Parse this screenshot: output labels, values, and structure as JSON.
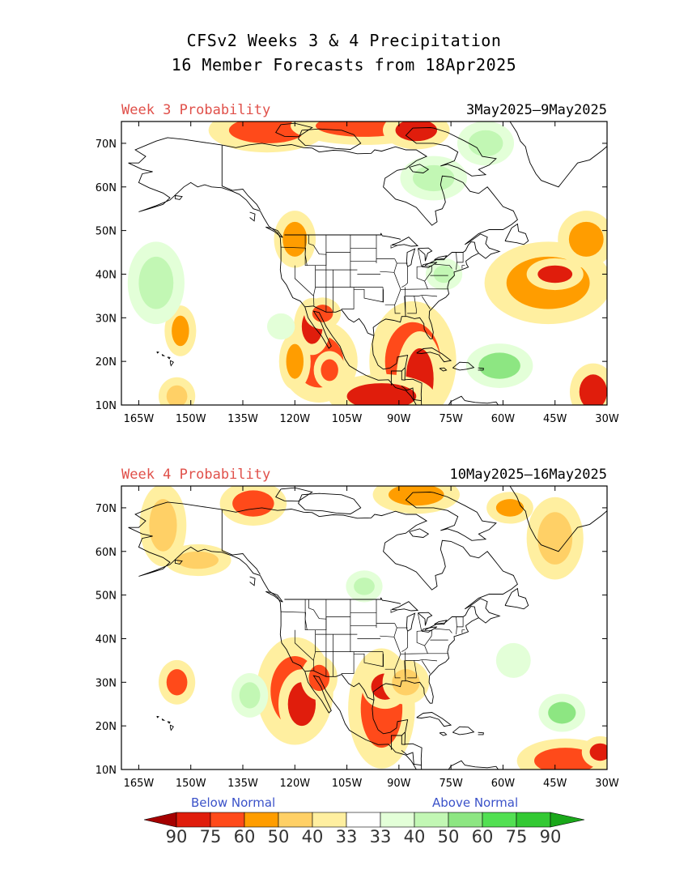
{
  "header": {
    "title_line1": "CFSv2 Weeks 3 & 4 Precipitation",
    "title_line2": "16 Member Forecasts from 18Apr2025"
  },
  "panels": [
    {
      "label": "Week 3 Probability",
      "dates": "3May2025—9May2025",
      "blobs": [
        {
          "lon": -128,
          "lat": 73,
          "rx": 11,
          "ry": 3,
          "cat": "b60"
        },
        {
          "lon": -100,
          "lat": 74,
          "rx": 14,
          "ry": 2.5,
          "cat": "b60"
        },
        {
          "lon": -85,
          "lat": 73,
          "rx": 6,
          "ry": 2.5,
          "cat": "b75"
        },
        {
          "lon": -113,
          "lat": 20,
          "rx": 7,
          "ry": 6,
          "cat": "b60"
        },
        {
          "lon": -115,
          "lat": 28,
          "rx": 3,
          "ry": 4,
          "cat": "b75"
        },
        {
          "lon": -112,
          "lat": 31,
          "rx": 3,
          "ry": 2,
          "cat": "b60"
        },
        {
          "lon": -120,
          "lat": 48,
          "rx": 3.5,
          "ry": 4,
          "cat": "b50"
        },
        {
          "lon": -153,
          "lat": 27,
          "rx": 2.5,
          "ry": 3.5,
          "cat": "b50"
        },
        {
          "lon": -154,
          "lat": 12,
          "rx": 3,
          "ry": 2.5,
          "cat": "b40"
        },
        {
          "lon": -120,
          "lat": 20,
          "rx": 2.5,
          "ry": 4,
          "cat": "b50"
        },
        {
          "lon": -110,
          "lat": 18,
          "rx": 2.5,
          "ry": 2.5,
          "cat": "b60"
        },
        {
          "lon": -86,
          "lat": 20,
          "rx": 8,
          "ry": 9,
          "cat": "b60"
        },
        {
          "lon": -84,
          "lat": 16,
          "rx": 4,
          "ry": 7,
          "cat": "b75"
        },
        {
          "lon": -95,
          "lat": 12,
          "rx": 10,
          "ry": 3,
          "cat": "b75"
        },
        {
          "lon": -47,
          "lat": 38,
          "rx": 12,
          "ry": 6,
          "cat": "b50"
        },
        {
          "lon": -45,
          "lat": 40,
          "rx": 5,
          "ry": 2,
          "cat": "b75"
        },
        {
          "lon": -36,
          "lat": 48,
          "rx": 5,
          "ry": 4,
          "cat": "b50"
        },
        {
          "lon": -34,
          "lat": 13,
          "rx": 4,
          "ry": 4,
          "cat": "b75"
        },
        {
          "lon": -61,
          "lat": 19,
          "rx": 6,
          "ry": 3,
          "cat": "a50"
        },
        {
          "lon": -160,
          "lat": 38,
          "rx": 5,
          "ry": 6,
          "cat": "a40"
        },
        {
          "lon": -80,
          "lat": 62,
          "rx": 6,
          "ry": 3,
          "cat": "a40"
        },
        {
          "lon": -65,
          "lat": 70,
          "rx": 5,
          "ry": 3,
          "cat": "a40"
        },
        {
          "lon": -77,
          "lat": 40,
          "rx": 3,
          "ry": 2,
          "cat": "a40"
        },
        {
          "lon": -124,
          "lat": 28,
          "rx": 4,
          "ry": 3,
          "cat": "a33"
        }
      ]
    },
    {
      "label": "Week 4 Probability",
      "dates": "10May2025—16May2025",
      "blobs": [
        {
          "lon": -132,
          "lat": 71,
          "rx": 6,
          "ry": 3,
          "cat": "b60"
        },
        {
          "lon": -85,
          "lat": 73,
          "rx": 8,
          "ry": 2.5,
          "cat": "b50"
        },
        {
          "lon": -58,
          "lat": 70,
          "rx": 4,
          "ry": 2,
          "cat": "b50"
        },
        {
          "lon": -158,
          "lat": 66,
          "rx": 4,
          "ry": 6,
          "cat": "b40"
        },
        {
          "lon": -148,
          "lat": 58,
          "rx": 6,
          "ry": 2,
          "cat": "b40"
        },
        {
          "lon": -120,
          "lat": 28,
          "rx": 7,
          "ry": 8,
          "cat": "b60"
        },
        {
          "lon": -118,
          "lat": 25,
          "rx": 4,
          "ry": 5,
          "cat": "b75"
        },
        {
          "lon": -113,
          "lat": 31,
          "rx": 3,
          "ry": 3,
          "cat": "b60"
        },
        {
          "lon": -95,
          "lat": 24,
          "rx": 6,
          "ry": 9,
          "cat": "b60"
        },
        {
          "lon": -94,
          "lat": 29,
          "rx": 4,
          "ry": 3,
          "cat": "b75"
        },
        {
          "lon": -88,
          "lat": 30,
          "rx": 4,
          "ry": 3,
          "cat": "b40"
        },
        {
          "lon": -154,
          "lat": 30,
          "rx": 3,
          "ry": 3,
          "cat": "b60"
        },
        {
          "lon": -42,
          "lat": 12,
          "rx": 9,
          "ry": 3,
          "cat": "b60"
        },
        {
          "lon": -32,
          "lat": 14,
          "rx": 3,
          "ry": 2,
          "cat": "b75"
        },
        {
          "lon": -45,
          "lat": 63,
          "rx": 5,
          "ry": 6,
          "cat": "b40"
        },
        {
          "lon": -43,
          "lat": 23,
          "rx": 4,
          "ry": 2.5,
          "cat": "a50"
        },
        {
          "lon": -57,
          "lat": 35,
          "rx": 5,
          "ry": 4,
          "cat": "a33"
        },
        {
          "lon": -100,
          "lat": 52,
          "rx": 3,
          "ry": 2,
          "cat": "a40"
        },
        {
          "lon": -133,
          "lat": 27,
          "rx": 3,
          "ry": 3,
          "cat": "a40"
        }
      ]
    }
  ],
  "map": {
    "lon_ticks": [
      "165W",
      "150W",
      "135W",
      "120W",
      "105W",
      "90W",
      "75W",
      "60W",
      "45W",
      "30W"
    ],
    "lat_ticks": [
      "10N",
      "20N",
      "30N",
      "40N",
      "50N",
      "60N",
      "70N"
    ]
  },
  "legend": {
    "below_label": "Below Normal",
    "above_label": "Above Normal",
    "numbers": [
      "90",
      "75",
      "60",
      "50",
      "40",
      "33",
      "33",
      "40",
      "50",
      "60",
      "75",
      "90"
    ],
    "colors": [
      "#a50000",
      "#e01d0c",
      "#ff4a1a",
      "#ff9d00",
      "#ffd066",
      "#ffefa0",
      "#ffffff",
      "#e3ffd8",
      "#c2f7b4",
      "#8de682",
      "#52e052",
      "#33c933",
      "#1aa81a"
    ]
  },
  "category_colors": {
    "b33": "#ffefa0",
    "b40": "#ffd066",
    "b50": "#ff9d00",
    "b60": "#ff4a1a",
    "b75": "#e01d0c",
    "a33": "#e3ffd8",
    "a40": "#c2f7b4",
    "a50": "#8de682",
    "a60": "#52e052"
  }
}
